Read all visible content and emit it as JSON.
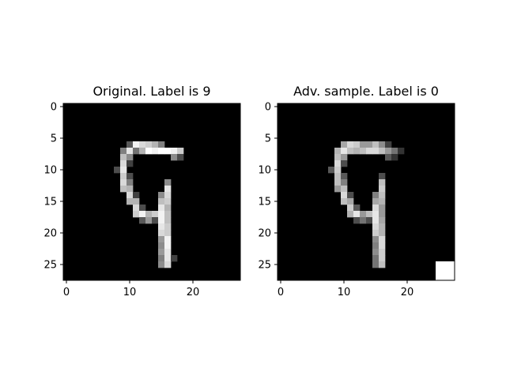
{
  "chart_data": [
    {
      "type": "heatmap",
      "title": "Original. Label is 9",
      "xlabel": "",
      "ylabel": "",
      "colormap": "gray",
      "value_range": [
        0,
        1
      ],
      "xlim": [
        -0.5,
        27.5
      ],
      "ylim": [
        27.5,
        -0.5
      ],
      "x_ticks": [
        0,
        10,
        20
      ],
      "y_ticks": [
        0,
        5,
        10,
        15,
        20,
        25
      ],
      "grid": false,
      "rows": 28,
      "cols": 28,
      "pixels": [
        {
          "r": 6,
          "c": 10,
          "v": 0.35
        },
        {
          "r": 6,
          "c": 11,
          "v": 0.95
        },
        {
          "r": 6,
          "c": 12,
          "v": 0.85
        },
        {
          "r": 6,
          "c": 13,
          "v": 0.8
        },
        {
          "r": 6,
          "c": 14,
          "v": 0.7
        },
        {
          "r": 6,
          "c": 15,
          "v": 0.5
        },
        {
          "r": 7,
          "c": 9,
          "v": 0.5
        },
        {
          "r": 7,
          "c": 10,
          "v": 0.9
        },
        {
          "r": 7,
          "c": 11,
          "v": 0.45
        },
        {
          "r": 7,
          "c": 12,
          "v": 0.7
        },
        {
          "r": 7,
          "c": 13,
          "v": 1.0
        },
        {
          "r": 7,
          "c": 14,
          "v": 0.95
        },
        {
          "r": 7,
          "c": 15,
          "v": 1.0
        },
        {
          "r": 7,
          "c": 16,
          "v": 1.0
        },
        {
          "r": 7,
          "c": 17,
          "v": 0.95
        },
        {
          "r": 7,
          "c": 18,
          "v": 0.8
        },
        {
          "r": 8,
          "c": 9,
          "v": 0.75
        },
        {
          "r": 8,
          "c": 10,
          "v": 0.55
        },
        {
          "r": 8,
          "c": 17,
          "v": 0.55
        },
        {
          "r": 8,
          "c": 18,
          "v": 0.3
        },
        {
          "r": 9,
          "c": 9,
          "v": 0.85
        },
        {
          "r": 9,
          "c": 10,
          "v": 0.25
        },
        {
          "r": 10,
          "c": 8,
          "v": 0.3
        },
        {
          "r": 10,
          "c": 9,
          "v": 0.9
        },
        {
          "r": 11,
          "c": 9,
          "v": 0.8
        },
        {
          "r": 11,
          "c": 10,
          "v": 0.3
        },
        {
          "r": 12,
          "c": 9,
          "v": 0.85
        },
        {
          "r": 12,
          "c": 10,
          "v": 0.5
        },
        {
          "r": 12,
          "c": 16,
          "v": 0.55
        },
        {
          "r": 13,
          "c": 9,
          "v": 0.75
        },
        {
          "r": 13,
          "c": 10,
          "v": 0.7
        },
        {
          "r": 13,
          "c": 16,
          "v": 0.9
        },
        {
          "r": 14,
          "c": 10,
          "v": 0.85
        },
        {
          "r": 14,
          "c": 11,
          "v": 0.25
        },
        {
          "r": 14,
          "c": 15,
          "v": 0.55
        },
        {
          "r": 14,
          "c": 16,
          "v": 0.85
        },
        {
          "r": 15,
          "c": 10,
          "v": 0.7
        },
        {
          "r": 15,
          "c": 11,
          "v": 0.7
        },
        {
          "r": 15,
          "c": 15,
          "v": 0.75
        },
        {
          "r": 15,
          "c": 16,
          "v": 0.8
        },
        {
          "r": 16,
          "c": 11,
          "v": 0.85
        },
        {
          "r": 16,
          "c": 12,
          "v": 0.3
        },
        {
          "r": 16,
          "c": 15,
          "v": 0.9
        },
        {
          "r": 16,
          "c": 16,
          "v": 0.7
        },
        {
          "r": 17,
          "c": 11,
          "v": 0.8
        },
        {
          "r": 17,
          "c": 12,
          "v": 0.95
        },
        {
          "r": 17,
          "c": 13,
          "v": 0.7
        },
        {
          "r": 17,
          "c": 14,
          "v": 0.8
        },
        {
          "r": 17,
          "c": 15,
          "v": 0.95
        },
        {
          "r": 17,
          "c": 16,
          "v": 0.75
        },
        {
          "r": 18,
          "c": 12,
          "v": 0.35
        },
        {
          "r": 18,
          "c": 13,
          "v": 0.6
        },
        {
          "r": 18,
          "c": 14,
          "v": 0.3
        },
        {
          "r": 18,
          "c": 15,
          "v": 0.95
        },
        {
          "r": 18,
          "c": 16,
          "v": 0.75
        },
        {
          "r": 19,
          "c": 15,
          "v": 0.9
        },
        {
          "r": 19,
          "c": 16,
          "v": 0.8
        },
        {
          "r": 20,
          "c": 15,
          "v": 0.85
        },
        {
          "r": 20,
          "c": 16,
          "v": 0.8
        },
        {
          "r": 21,
          "c": 15,
          "v": 0.6
        },
        {
          "r": 21,
          "c": 16,
          "v": 0.95
        },
        {
          "r": 22,
          "c": 15,
          "v": 0.55
        },
        {
          "r": 22,
          "c": 16,
          "v": 0.95
        },
        {
          "r": 23,
          "c": 15,
          "v": 0.6
        },
        {
          "r": 23,
          "c": 16,
          "v": 0.9
        },
        {
          "r": 24,
          "c": 15,
          "v": 0.5
        },
        {
          "r": 24,
          "c": 16,
          "v": 0.9
        },
        {
          "r": 24,
          "c": 17,
          "v": 0.25
        },
        {
          "r": 25,
          "c": 15,
          "v": 0.55
        },
        {
          "r": 25,
          "c": 16,
          "v": 0.85
        }
      ]
    },
    {
      "type": "heatmap",
      "title": "Adv. sample. Label is 0",
      "xlabel": "",
      "ylabel": "",
      "colormap": "gray",
      "value_range": [
        0,
        1
      ],
      "xlim": [
        -0.5,
        27.5
      ],
      "ylim": [
        27.5,
        -0.5
      ],
      "x_ticks": [
        0,
        10,
        20
      ],
      "y_ticks": [
        0,
        5,
        10,
        15,
        20,
        25
      ],
      "grid": false,
      "rows": 28,
      "cols": 28,
      "pixels": [
        {
          "r": 6,
          "c": 10,
          "v": 0.65
        },
        {
          "r": 6,
          "c": 11,
          "v": 0.85
        },
        {
          "r": 6,
          "c": 12,
          "v": 0.8
        },
        {
          "r": 6,
          "c": 13,
          "v": 0.6
        },
        {
          "r": 6,
          "c": 14,
          "v": 0.6
        },
        {
          "r": 6,
          "c": 15,
          "v": 0.75
        },
        {
          "r": 6,
          "c": 16,
          "v": 0.55
        },
        {
          "r": 6,
          "c": 17,
          "v": 0.25
        },
        {
          "r": 7,
          "c": 9,
          "v": 0.7
        },
        {
          "r": 7,
          "c": 10,
          "v": 0.9
        },
        {
          "r": 7,
          "c": 11,
          "v": 0.75
        },
        {
          "r": 7,
          "c": 12,
          "v": 0.7
        },
        {
          "r": 7,
          "c": 13,
          "v": 0.75
        },
        {
          "r": 7,
          "c": 14,
          "v": 0.85
        },
        {
          "r": 7,
          "c": 15,
          "v": 0.85
        },
        {
          "r": 7,
          "c": 16,
          "v": 0.75
        },
        {
          "r": 7,
          "c": 17,
          "v": 0.6
        },
        {
          "r": 7,
          "c": 18,
          "v": 0.45
        },
        {
          "r": 7,
          "c": 19,
          "v": 0.2
        },
        {
          "r": 8,
          "c": 9,
          "v": 0.75
        },
        {
          "r": 8,
          "c": 10,
          "v": 0.6
        },
        {
          "r": 8,
          "c": 17,
          "v": 0.35
        },
        {
          "r": 8,
          "c": 18,
          "v": 0.2
        },
        {
          "r": 9,
          "c": 9,
          "v": 0.85
        },
        {
          "r": 9,
          "c": 10,
          "v": 0.3
        },
        {
          "r": 10,
          "c": 8,
          "v": 0.35
        },
        {
          "r": 10,
          "c": 9,
          "v": 0.8
        },
        {
          "r": 11,
          "c": 9,
          "v": 0.75
        },
        {
          "r": 11,
          "c": 10,
          "v": 0.35
        },
        {
          "r": 11,
          "c": 16,
          "v": 0.3
        },
        {
          "r": 12,
          "c": 9,
          "v": 0.75
        },
        {
          "r": 12,
          "c": 10,
          "v": 0.5
        },
        {
          "r": 12,
          "c": 16,
          "v": 0.75
        },
        {
          "r": 13,
          "c": 9,
          "v": 0.6
        },
        {
          "r": 13,
          "c": 10,
          "v": 0.75
        },
        {
          "r": 13,
          "c": 16,
          "v": 0.8
        },
        {
          "r": 14,
          "c": 10,
          "v": 0.85
        },
        {
          "r": 14,
          "c": 11,
          "v": 0.3
        },
        {
          "r": 14,
          "c": 15,
          "v": 0.5
        },
        {
          "r": 14,
          "c": 16,
          "v": 0.75
        },
        {
          "r": 15,
          "c": 10,
          "v": 0.75
        },
        {
          "r": 15,
          "c": 11,
          "v": 0.65
        },
        {
          "r": 15,
          "c": 15,
          "v": 0.65
        },
        {
          "r": 15,
          "c": 16,
          "v": 0.7
        },
        {
          "r": 16,
          "c": 11,
          "v": 0.8
        },
        {
          "r": 16,
          "c": 12,
          "v": 0.35
        },
        {
          "r": 16,
          "c": 15,
          "v": 0.85
        },
        {
          "r": 16,
          "c": 16,
          "v": 0.6
        },
        {
          "r": 17,
          "c": 11,
          "v": 0.7
        },
        {
          "r": 17,
          "c": 12,
          "v": 0.9
        },
        {
          "r": 17,
          "c": 13,
          "v": 0.6
        },
        {
          "r": 17,
          "c": 14,
          "v": 0.75
        },
        {
          "r": 17,
          "c": 15,
          "v": 0.9
        },
        {
          "r": 17,
          "c": 16,
          "v": 0.6
        },
        {
          "r": 18,
          "c": 12,
          "v": 0.3
        },
        {
          "r": 18,
          "c": 13,
          "v": 0.45
        },
        {
          "r": 18,
          "c": 14,
          "v": 0.3
        },
        {
          "r": 18,
          "c": 15,
          "v": 0.9
        },
        {
          "r": 18,
          "c": 16,
          "v": 0.65
        },
        {
          "r": 19,
          "c": 15,
          "v": 0.85
        },
        {
          "r": 19,
          "c": 16,
          "v": 0.7
        },
        {
          "r": 20,
          "c": 15,
          "v": 0.8
        },
        {
          "r": 20,
          "c": 16,
          "v": 0.7
        },
        {
          "r": 21,
          "c": 15,
          "v": 0.55
        },
        {
          "r": 21,
          "c": 16,
          "v": 0.85
        },
        {
          "r": 22,
          "c": 15,
          "v": 0.5
        },
        {
          "r": 22,
          "c": 16,
          "v": 0.85
        },
        {
          "r": 23,
          "c": 15,
          "v": 0.55
        },
        {
          "r": 23,
          "c": 16,
          "v": 0.8
        },
        {
          "r": 24,
          "c": 15,
          "v": 0.45
        },
        {
          "r": 24,
          "c": 16,
          "v": 0.8
        },
        {
          "r": 25,
          "c": 15,
          "v": 0.45
        },
        {
          "r": 25,
          "c": 16,
          "v": 0.75
        },
        {
          "r": 25,
          "c": 25,
          "v": 1.0
        },
        {
          "r": 25,
          "c": 26,
          "v": 1.0
        },
        {
          "r": 25,
          "c": 27,
          "v": 1.0
        },
        {
          "r": 26,
          "c": 25,
          "v": 1.0
        },
        {
          "r": 26,
          "c": 26,
          "v": 1.0
        },
        {
          "r": 26,
          "c": 27,
          "v": 1.0
        },
        {
          "r": 27,
          "c": 25,
          "v": 1.0
        },
        {
          "r": 27,
          "c": 26,
          "v": 1.0
        },
        {
          "r": 27,
          "c": 27,
          "v": 1.0
        }
      ]
    }
  ]
}
